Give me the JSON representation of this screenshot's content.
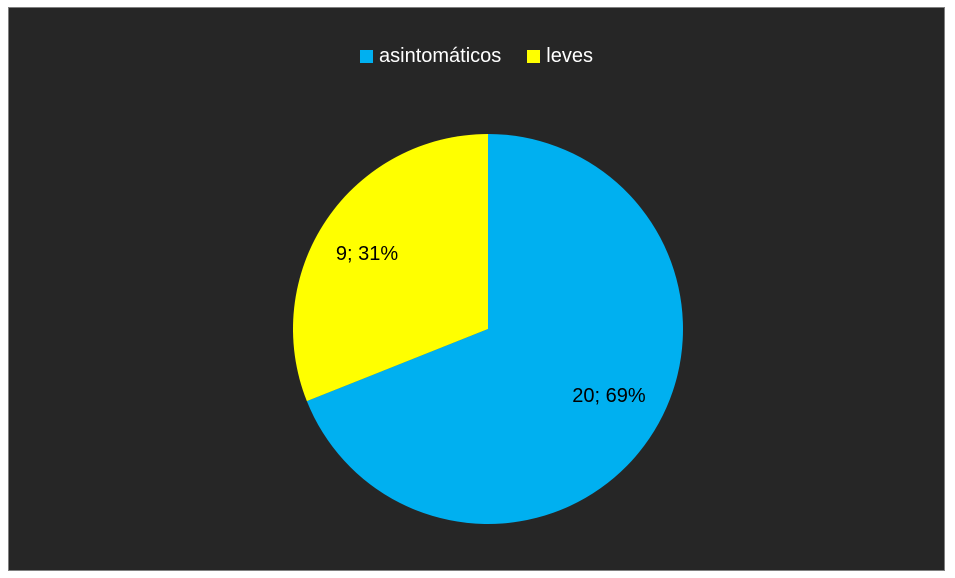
{
  "chart_data": {
    "type": "pie",
    "title": "",
    "legend_position": "top",
    "slices": [
      {
        "name": "asintomáticos",
        "value": 20,
        "percent": "69%",
        "label": "20; 69%",
        "color": "#00b0f0"
      },
      {
        "name": "leves",
        "value": 9,
        "percent": "31%",
        "label": "9; 31%",
        "color": "#ffff00"
      }
    ]
  },
  "legend": {
    "items": [
      {
        "label": "asintomáticos",
        "color": "#00b0f0"
      },
      {
        "label": "leves",
        "color": "#ffff00"
      }
    ]
  }
}
